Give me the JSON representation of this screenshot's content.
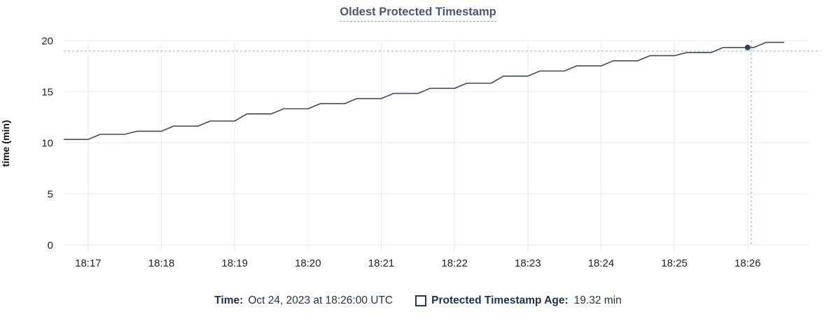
{
  "chart_data": {
    "type": "line",
    "title": "Oldest Protected Timestamp",
    "xlabel": "",
    "ylabel": "time (min)",
    "grid": true,
    "legend_position": "bottom",
    "y_axis": {
      "min": 0,
      "max": 20,
      "ticks": [
        0,
        5,
        10,
        15,
        20
      ]
    },
    "x_axis": {
      "start_seconds": 0,
      "end_seconds": 610,
      "start_time": "18:16:40",
      "end_time": "18:26:50",
      "ticks": [
        {
          "seconds": 20,
          "label": "18:17"
        },
        {
          "seconds": 80,
          "label": "18:18"
        },
        {
          "seconds": 140,
          "label": "18:19"
        },
        {
          "seconds": 200,
          "label": "18:20"
        },
        {
          "seconds": 260,
          "label": "18:21"
        },
        {
          "seconds": 320,
          "label": "18:22"
        },
        {
          "seconds": 380,
          "label": "18:23"
        },
        {
          "seconds": 440,
          "label": "18:24"
        },
        {
          "seconds": 500,
          "label": "18:25"
        },
        {
          "seconds": 560,
          "label": "18:26"
        }
      ]
    },
    "series": [
      {
        "name": "Protected Timestamp Age",
        "unit": "min",
        "points": [
          [
            0,
            10.32
          ],
          [
            20,
            10.32
          ],
          [
            30,
            10.82
          ],
          [
            50,
            10.82
          ],
          [
            60,
            11.12
          ],
          [
            80,
            11.12
          ],
          [
            90,
            11.62
          ],
          [
            110,
            11.62
          ],
          [
            120,
            12.12
          ],
          [
            140,
            12.12
          ],
          [
            150,
            12.82
          ],
          [
            170,
            12.82
          ],
          [
            180,
            13.32
          ],
          [
            200,
            13.32
          ],
          [
            210,
            13.82
          ],
          [
            230,
            13.82
          ],
          [
            240,
            14.32
          ],
          [
            260,
            14.32
          ],
          [
            270,
            14.82
          ],
          [
            290,
            14.82
          ],
          [
            300,
            15.32
          ],
          [
            320,
            15.32
          ],
          [
            330,
            15.82
          ],
          [
            350,
            15.82
          ],
          [
            360,
            16.52
          ],
          [
            380,
            16.52
          ],
          [
            390,
            17.02
          ],
          [
            410,
            17.02
          ],
          [
            420,
            17.52
          ],
          [
            440,
            17.52
          ],
          [
            450,
            18.02
          ],
          [
            470,
            18.02
          ],
          [
            480,
            18.52
          ],
          [
            500,
            18.52
          ],
          [
            510,
            18.82
          ],
          [
            530,
            18.82
          ],
          [
            540,
            19.32
          ],
          [
            565,
            19.32
          ],
          [
            575,
            19.82
          ],
          [
            590,
            19.82
          ]
        ]
      }
    ],
    "hover": {
      "point_seconds": 560,
      "point_time_label": "18:26",
      "point_value": 19.32,
      "crosshair_seconds": 563,
      "crosshair_value": 18.97
    }
  },
  "legend": {
    "time_label": "Time:",
    "time_value": "Oct 24, 2023 at 18:26:00 UTC",
    "series_label": "Protected Timestamp Age:",
    "series_value": "19.32 min",
    "checkbox_checked": false
  },
  "colors": {
    "title": "#475872",
    "title_underline": "#8fa3b8",
    "line": "#3e4c63",
    "marker": "#2e3e58",
    "grid": "#ebebed",
    "crosshair": "#a6b3c2",
    "tick_text": "#222222",
    "axis_label": "#111111",
    "legend_text": "#1b3150",
    "checkbox_border": "#20395a",
    "background": "#ffffff"
  }
}
